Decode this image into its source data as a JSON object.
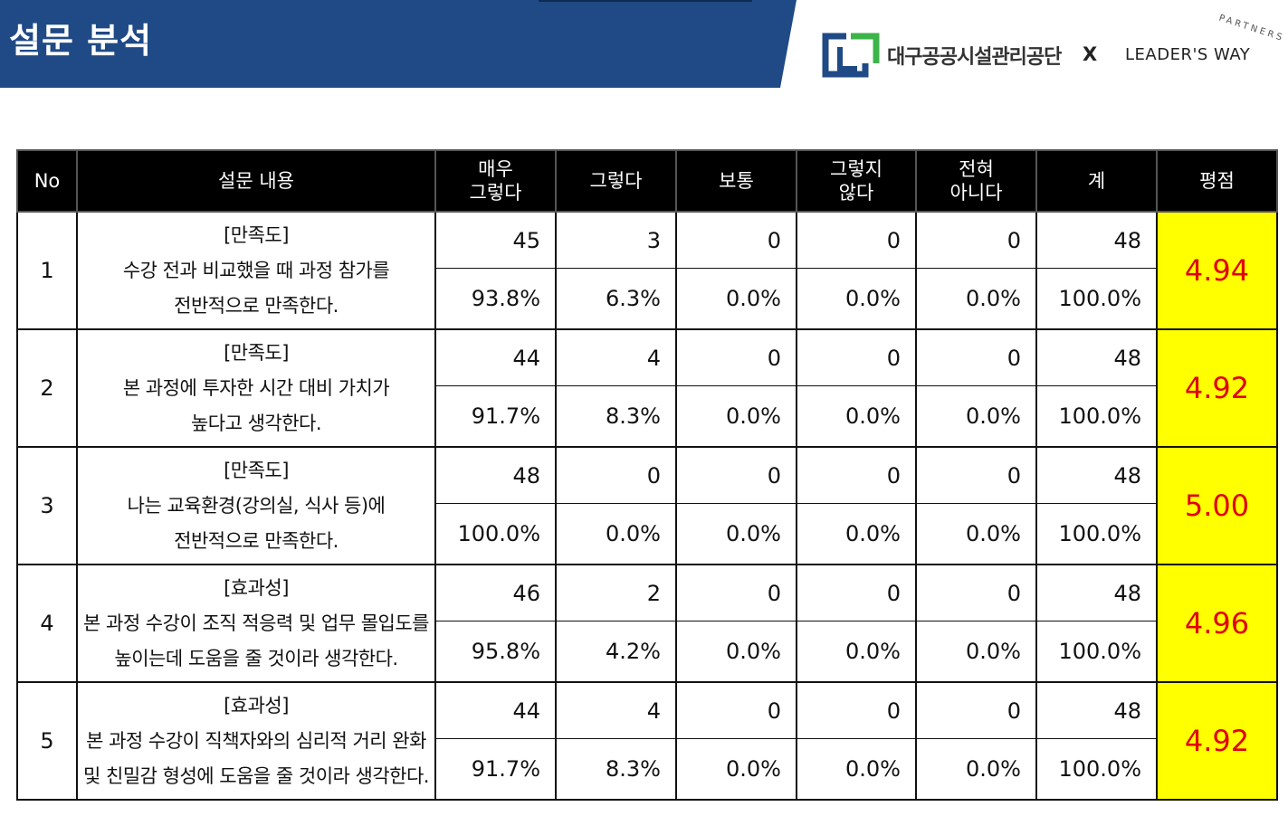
{
  "header": {
    "title": "설문 분석",
    "logo_text": "대구공공시설관리공단",
    "connector": "X",
    "partner": "LEADER'S WAY",
    "partner_tag": "PARTNERS"
  },
  "table": {
    "columns": [
      "No",
      "설문 내용",
      "매우\n그렇다",
      "그렇다",
      "보통",
      "그렇지\n않다",
      "전혀\n아니다",
      "계",
      "평점"
    ],
    "rows": [
      {
        "no": 1,
        "category": "[만족도]",
        "lines": [
          "수강 전과 비교했을 때 과정 참가를",
          "전반적으로 만족한다."
        ],
        "counts": [
          45,
          3,
          0,
          0,
          0,
          48
        ],
        "percents": [
          "93.8%",
          "6.3%",
          "0.0%",
          "0.0%",
          "0.0%",
          "100.0%"
        ],
        "score": "4.94"
      },
      {
        "no": 2,
        "category": "[만족도]",
        "lines": [
          "본 과정에 투자한 시간 대비 가치가",
          "높다고 생각한다."
        ],
        "counts": [
          44,
          4,
          0,
          0,
          0,
          48
        ],
        "percents": [
          "91.7%",
          "8.3%",
          "0.0%",
          "0.0%",
          "0.0%",
          "100.0%"
        ],
        "score": "4.92"
      },
      {
        "no": 3,
        "category": "[만족도]",
        "lines": [
          "나는 교육환경(강의실, 식사 등)에",
          "전반적으로 만족한다."
        ],
        "counts": [
          48,
          0,
          0,
          0,
          0,
          48
        ],
        "percents": [
          "100.0%",
          "0.0%",
          "0.0%",
          "0.0%",
          "0.0%",
          "100.0%"
        ],
        "score": "5.00"
      },
      {
        "no": 4,
        "category": "[효과성]",
        "lines": [
          "본 과정 수강이 조직 적응력 및 업무 몰입도를",
          "높이는데 도움을 줄 것이라 생각한다."
        ],
        "counts": [
          46,
          2,
          0,
          0,
          0,
          48
        ],
        "percents": [
          "95.8%",
          "4.2%",
          "0.0%",
          "0.0%",
          "0.0%",
          "100.0%"
        ],
        "score": "4.96"
      },
      {
        "no": 5,
        "category": "[효과성]",
        "lines": [
          "본 과정 수강이 직책자와의 심리적 거리 완화",
          "및 친밀감 형성에 도움을 줄 것이라 생각한다."
        ],
        "counts": [
          44,
          4,
          0,
          0,
          0,
          48
        ],
        "percents": [
          "91.7%",
          "8.3%",
          "0.0%",
          "0.0%",
          "0.0%",
          "100.0%"
        ],
        "score": "4.92"
      }
    ]
  }
}
